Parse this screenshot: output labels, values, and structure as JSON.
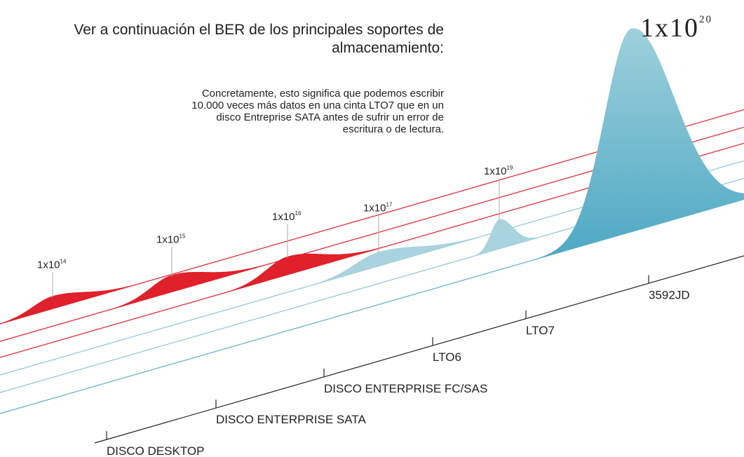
{
  "heading": [
    "Ver a continuación el BER de los principales soportes de",
    "almacenamiento:"
  ],
  "note": [
    "Concretamente, esto significa que podemos escribir",
    "10.000 veces más datos en una cinta LTO7 que en un",
    "disco Entreprise SATA antes de sufrir un error de",
    "escritura o de lectura."
  ],
  "media": [
    {
      "label": "DISCO DESKTOP",
      "ber": {
        "base": "1x10",
        "exponent": 14
      }
    },
    {
      "label": "DISCO ENTERPRISE SATA",
      "ber": {
        "base": "1x10",
        "exponent": 15
      }
    },
    {
      "label": "DISCO ENTERPRISE FC/SAS",
      "ber": {
        "base": "1x10",
        "exponent": 16
      }
    },
    {
      "label": "LTO6",
      "ber": {
        "base": "1x10",
        "exponent": 17
      }
    },
    {
      "label": "LTO7",
      "ber": {
        "base": "1x10",
        "exponent": 19
      }
    },
    {
      "label": "3592JD",
      "ber": {
        "base": "1x10",
        "exponent": 20
      }
    }
  ]
}
